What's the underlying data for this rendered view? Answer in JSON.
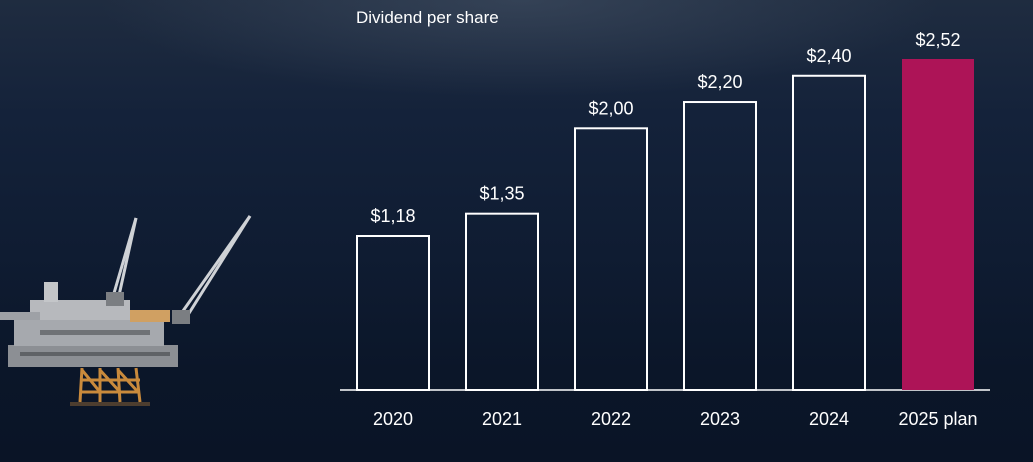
{
  "chart_data": {
    "type": "bar",
    "title": "Dividend per share",
    "categories": [
      "2020",
      "2021",
      "2022",
      "2023",
      "2024",
      "2025 plan"
    ],
    "values": [
      1.18,
      1.35,
      2.0,
      2.2,
      2.4,
      2.52
    ],
    "data_labels": [
      "$1,18",
      "$1,35",
      "$2,00",
      "$2,20",
      "$2,40",
      "$2,52"
    ],
    "highlight_index": 5,
    "ylim": [
      0,
      2.52
    ],
    "grid": false,
    "legend": "none",
    "colors": {
      "bar_outline": "#ffffff",
      "highlight_fill": "#ad1457",
      "axis": "#ffffff",
      "background": "#0f1c32"
    }
  },
  "background": {
    "image_icon": "offshore-oil-platform-icon"
  }
}
